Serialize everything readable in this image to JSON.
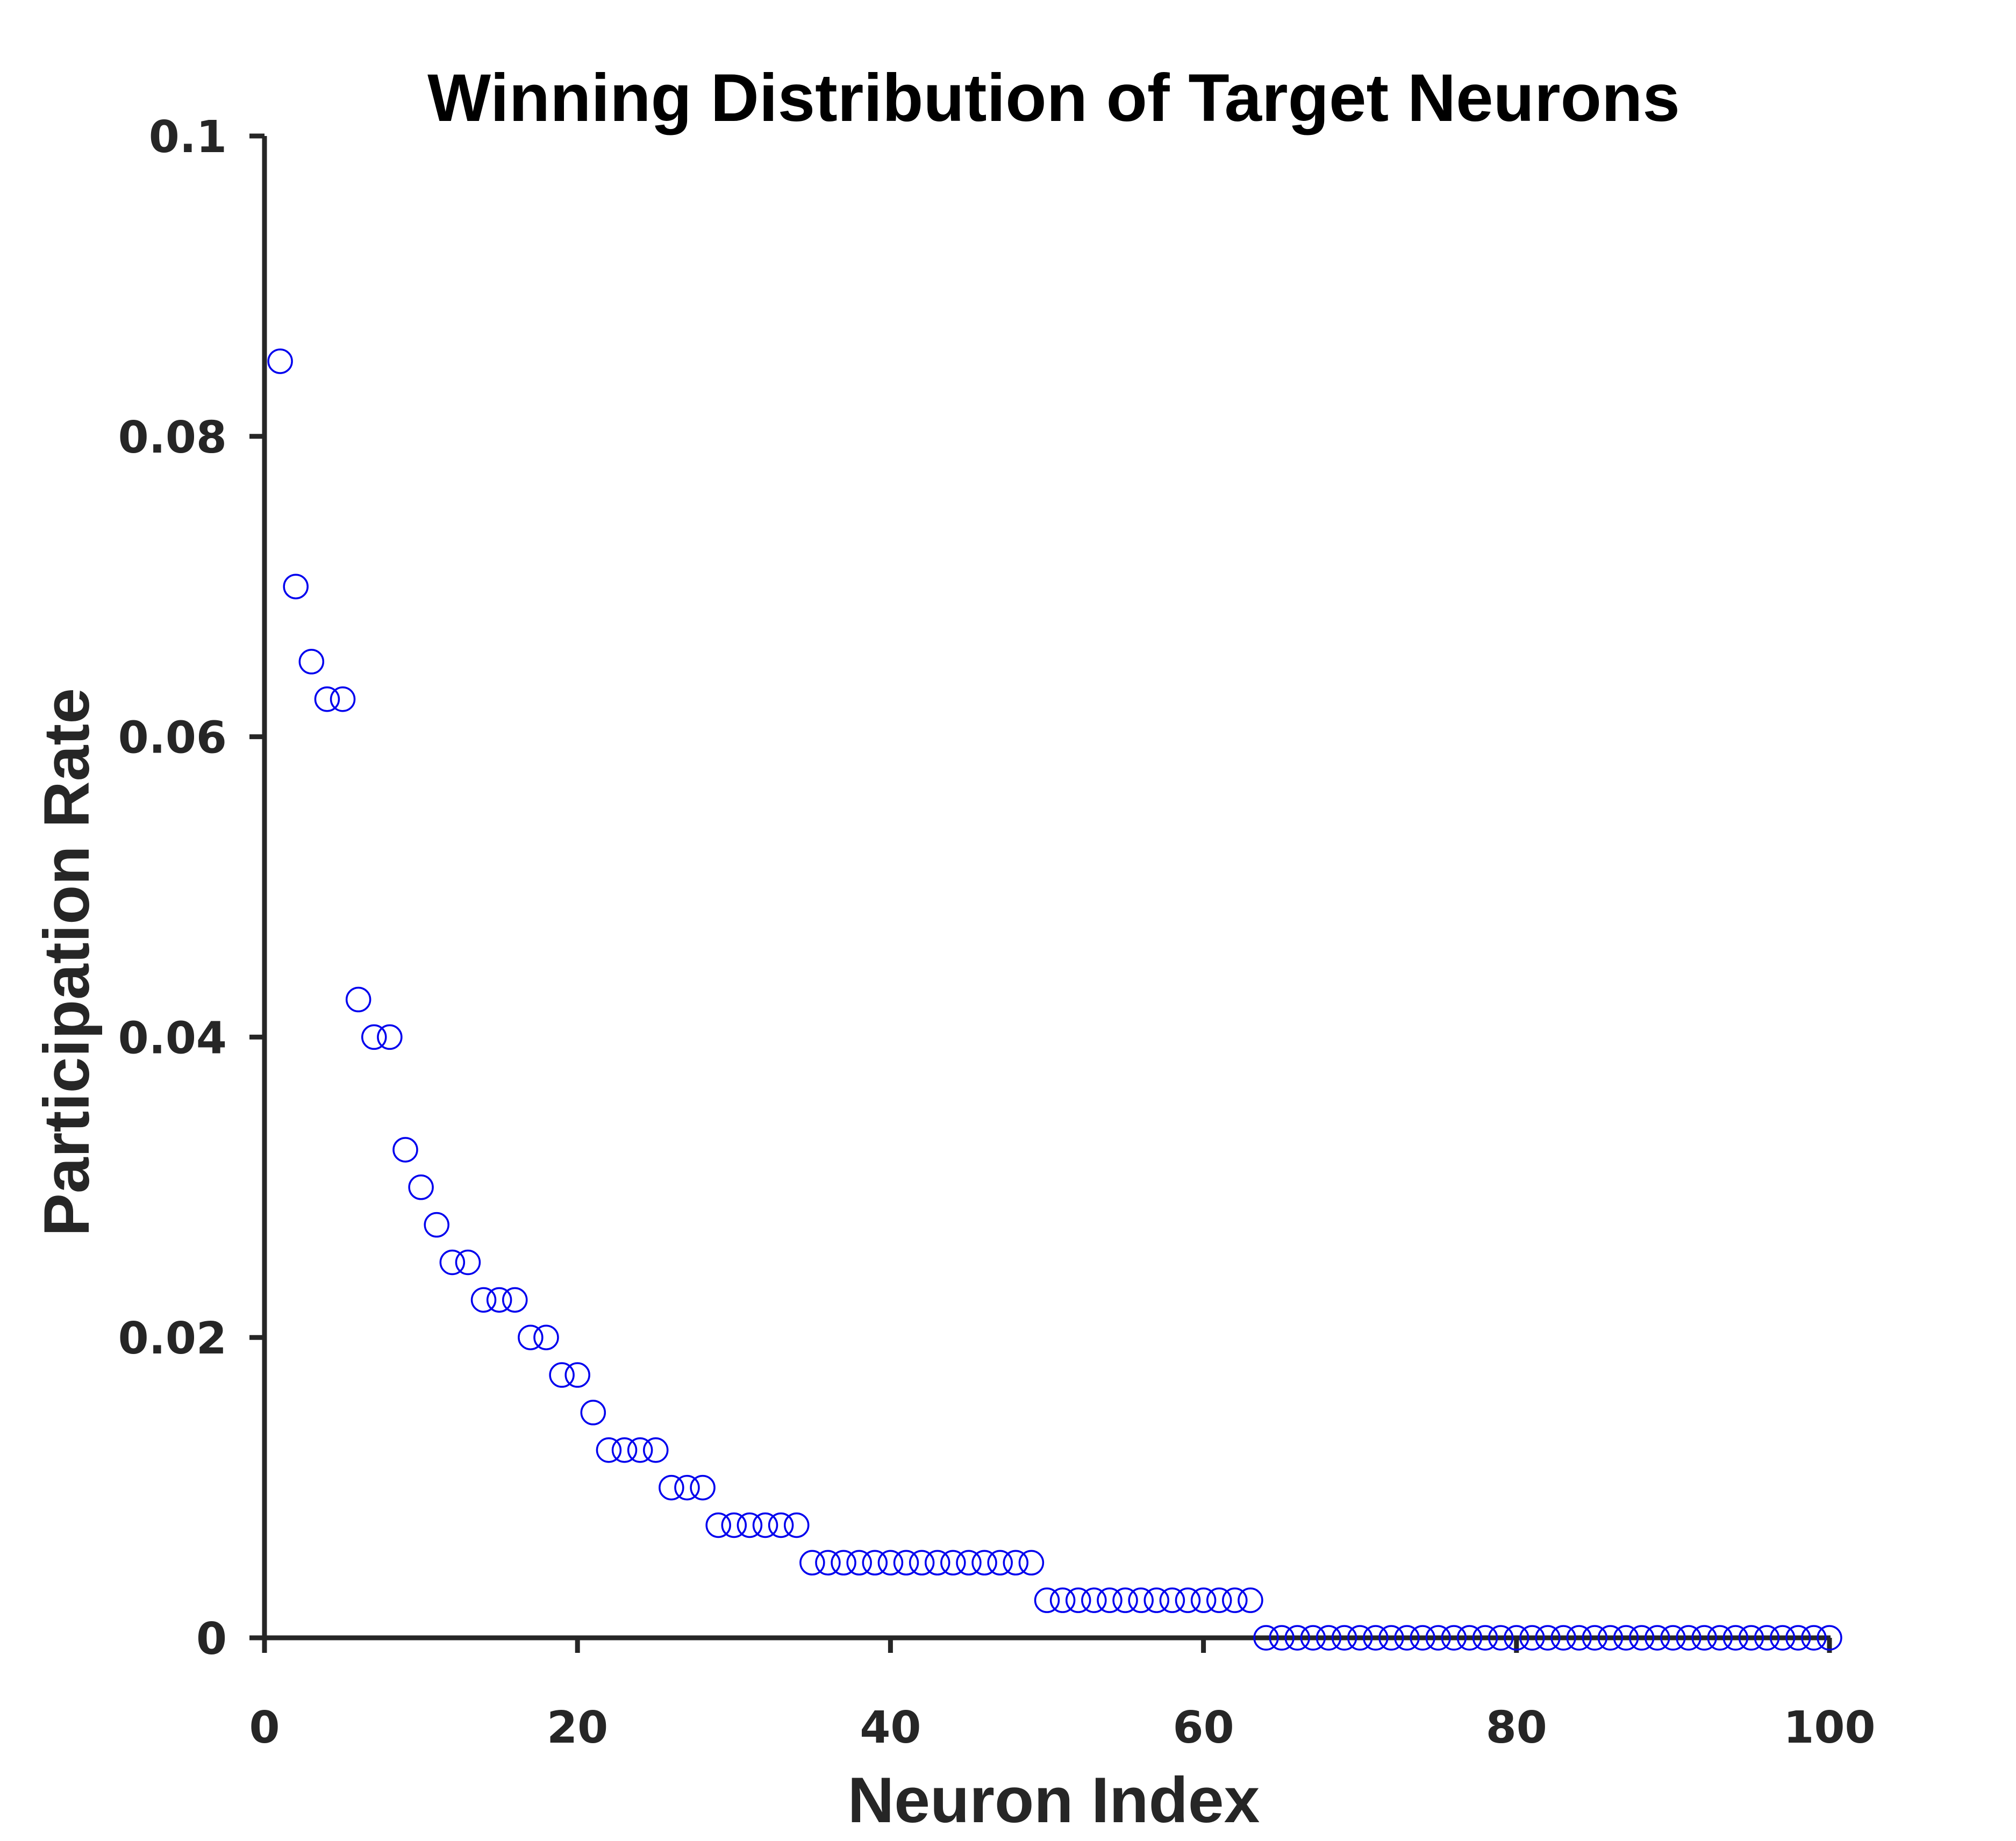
{
  "chart_data": {
    "type": "scatter",
    "title": "Winning Distribution of Target Neurons",
    "xlabel": "Neuron Index",
    "ylabel": "Participation Rate",
    "xlim": [
      0,
      100
    ],
    "ylim": [
      0,
      0.1
    ],
    "xticks": [
      0,
      20,
      40,
      60,
      80,
      100
    ],
    "xtick_labels": [
      "0",
      "20",
      "40",
      "60",
      "80",
      "100"
    ],
    "yticks": [
      0,
      0.02,
      0.04,
      0.06,
      0.08,
      0.1
    ],
    "ytick_labels": [
      "0",
      "0.02",
      "0.04",
      "0.06",
      "0.08",
      "0.1"
    ],
    "grid": false,
    "marker": "open-circle",
    "marker_color": "#0000ee",
    "axis_color": "#262626",
    "x": [
      1,
      2,
      3,
      4,
      5,
      6,
      7,
      8,
      9,
      10,
      11,
      12,
      13,
      14,
      15,
      16,
      17,
      18,
      19,
      20,
      21,
      22,
      23,
      24,
      25,
      26,
      27,
      28,
      29,
      30,
      31,
      32,
      33,
      34,
      35,
      36,
      37,
      38,
      39,
      40,
      41,
      42,
      43,
      44,
      45,
      46,
      47,
      48,
      49,
      50,
      51,
      52,
      53,
      54,
      55,
      56,
      57,
      58,
      59,
      60,
      61,
      62,
      63,
      64,
      65,
      66,
      67,
      68,
      69,
      70,
      71,
      72,
      73,
      74,
      75,
      76,
      77,
      78,
      79,
      80,
      81,
      82,
      83,
      84,
      85,
      86,
      87,
      88,
      89,
      90,
      91,
      92,
      93,
      94,
      95,
      96,
      97,
      98,
      99,
      100
    ],
    "y": [
      0.085,
      0.07,
      0.065,
      0.0625,
      0.0625,
      0.0425,
      0.04,
      0.04,
      0.0325,
      0.03,
      0.0275,
      0.025,
      0.025,
      0.0225,
      0.0225,
      0.0225,
      0.02,
      0.02,
      0.0175,
      0.0175,
      0.015,
      0.0125,
      0.0125,
      0.0125,
      0.0125,
      0.01,
      0.01,
      0.01,
      0.0075,
      0.0075,
      0.0075,
      0.0075,
      0.0075,
      0.0075,
      0.005,
      0.005,
      0.005,
      0.005,
      0.005,
      0.005,
      0.005,
      0.005,
      0.005,
      0.005,
      0.005,
      0.005,
      0.005,
      0.005,
      0.005,
      0.0025,
      0.0025,
      0.0025,
      0.0025,
      0.0025,
      0.0025,
      0.0025,
      0.0025,
      0.0025,
      0.0025,
      0.0025,
      0.0025,
      0.0025,
      0.0025,
      0,
      0,
      0,
      0,
      0,
      0,
      0,
      0,
      0,
      0,
      0,
      0,
      0,
      0,
      0,
      0,
      0,
      0,
      0,
      0,
      0,
      0,
      0,
      0,
      0,
      0,
      0,
      0,
      0,
      0,
      0,
      0,
      0,
      0,
      0,
      0,
      0
    ]
  }
}
